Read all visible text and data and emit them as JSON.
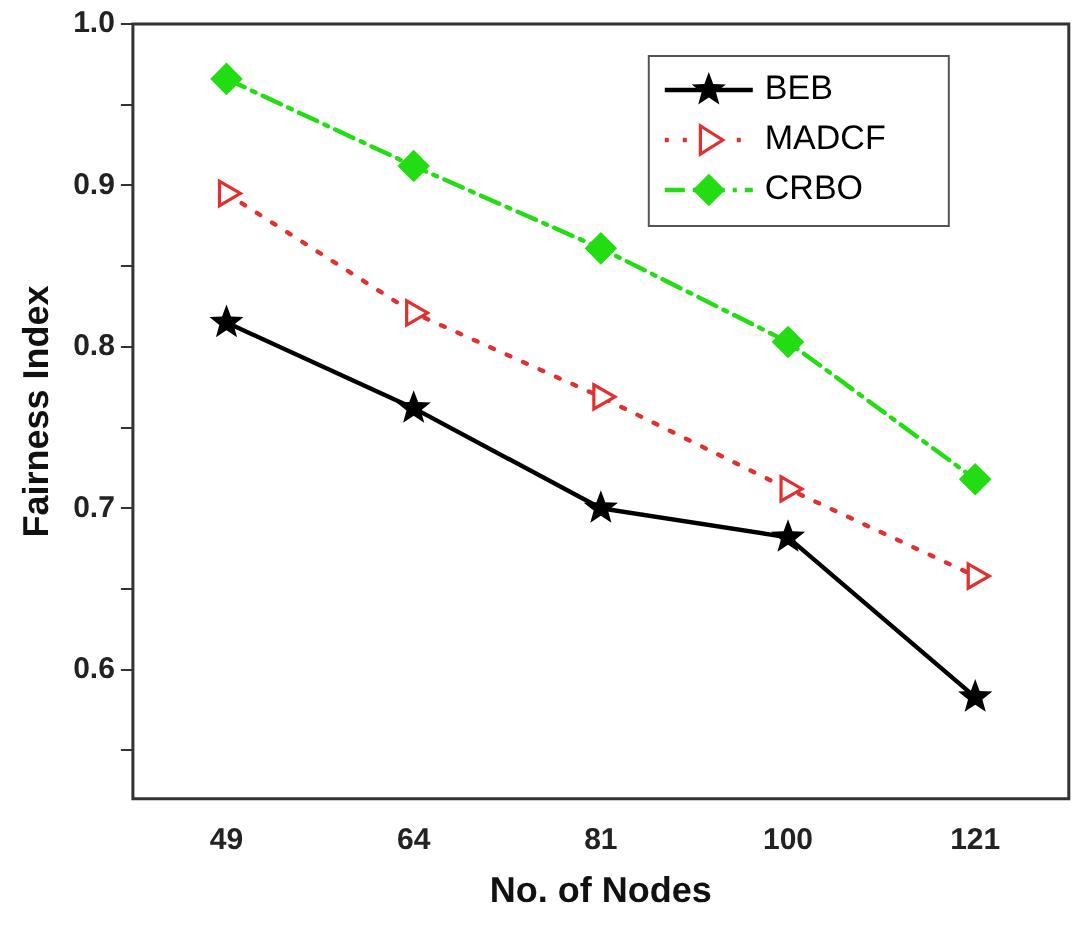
{
  "chart_data": {
    "type": "line",
    "xlabel": "No. of Nodes",
    "ylabel": "Fairness Index",
    "categories": [
      "49",
      "64",
      "81",
      "100",
      "121"
    ],
    "series": [
      {
        "name": "BEB",
        "color": "#000000",
        "marker": "star",
        "line_style": "solid",
        "values": [
          0.815,
          0.762,
          0.7,
          0.682,
          0.583
        ]
      },
      {
        "name": "MADCF",
        "color": "#e03030",
        "marker": "triangle",
        "line_style": "dotted",
        "values": [
          0.895,
          0.821,
          0.769,
          0.712,
          0.658
        ]
      },
      {
        "name": "CRBO",
        "color": "#22dd11",
        "marker": "diamond",
        "line_style": "dashed",
        "values": [
          0.966,
          0.912,
          0.861,
          0.803,
          0.718
        ]
      }
    ],
    "ylim": [
      0.52,
      1.0
    ],
    "yticks": [
      {
        "value": 0.55,
        "label": null
      },
      0.6,
      {
        "value": 0.65,
        "label": null
      },
      0.7,
      {
        "value": 0.75,
        "label": null
      },
      0.8,
      {
        "value": 0.85,
        "label": null
      },
      0.9,
      {
        "value": 0.95,
        "label": null
      },
      {
        "value": 1.0,
        "label": "1.0"
      }
    ],
    "grid": false,
    "legend": "top right"
  }
}
